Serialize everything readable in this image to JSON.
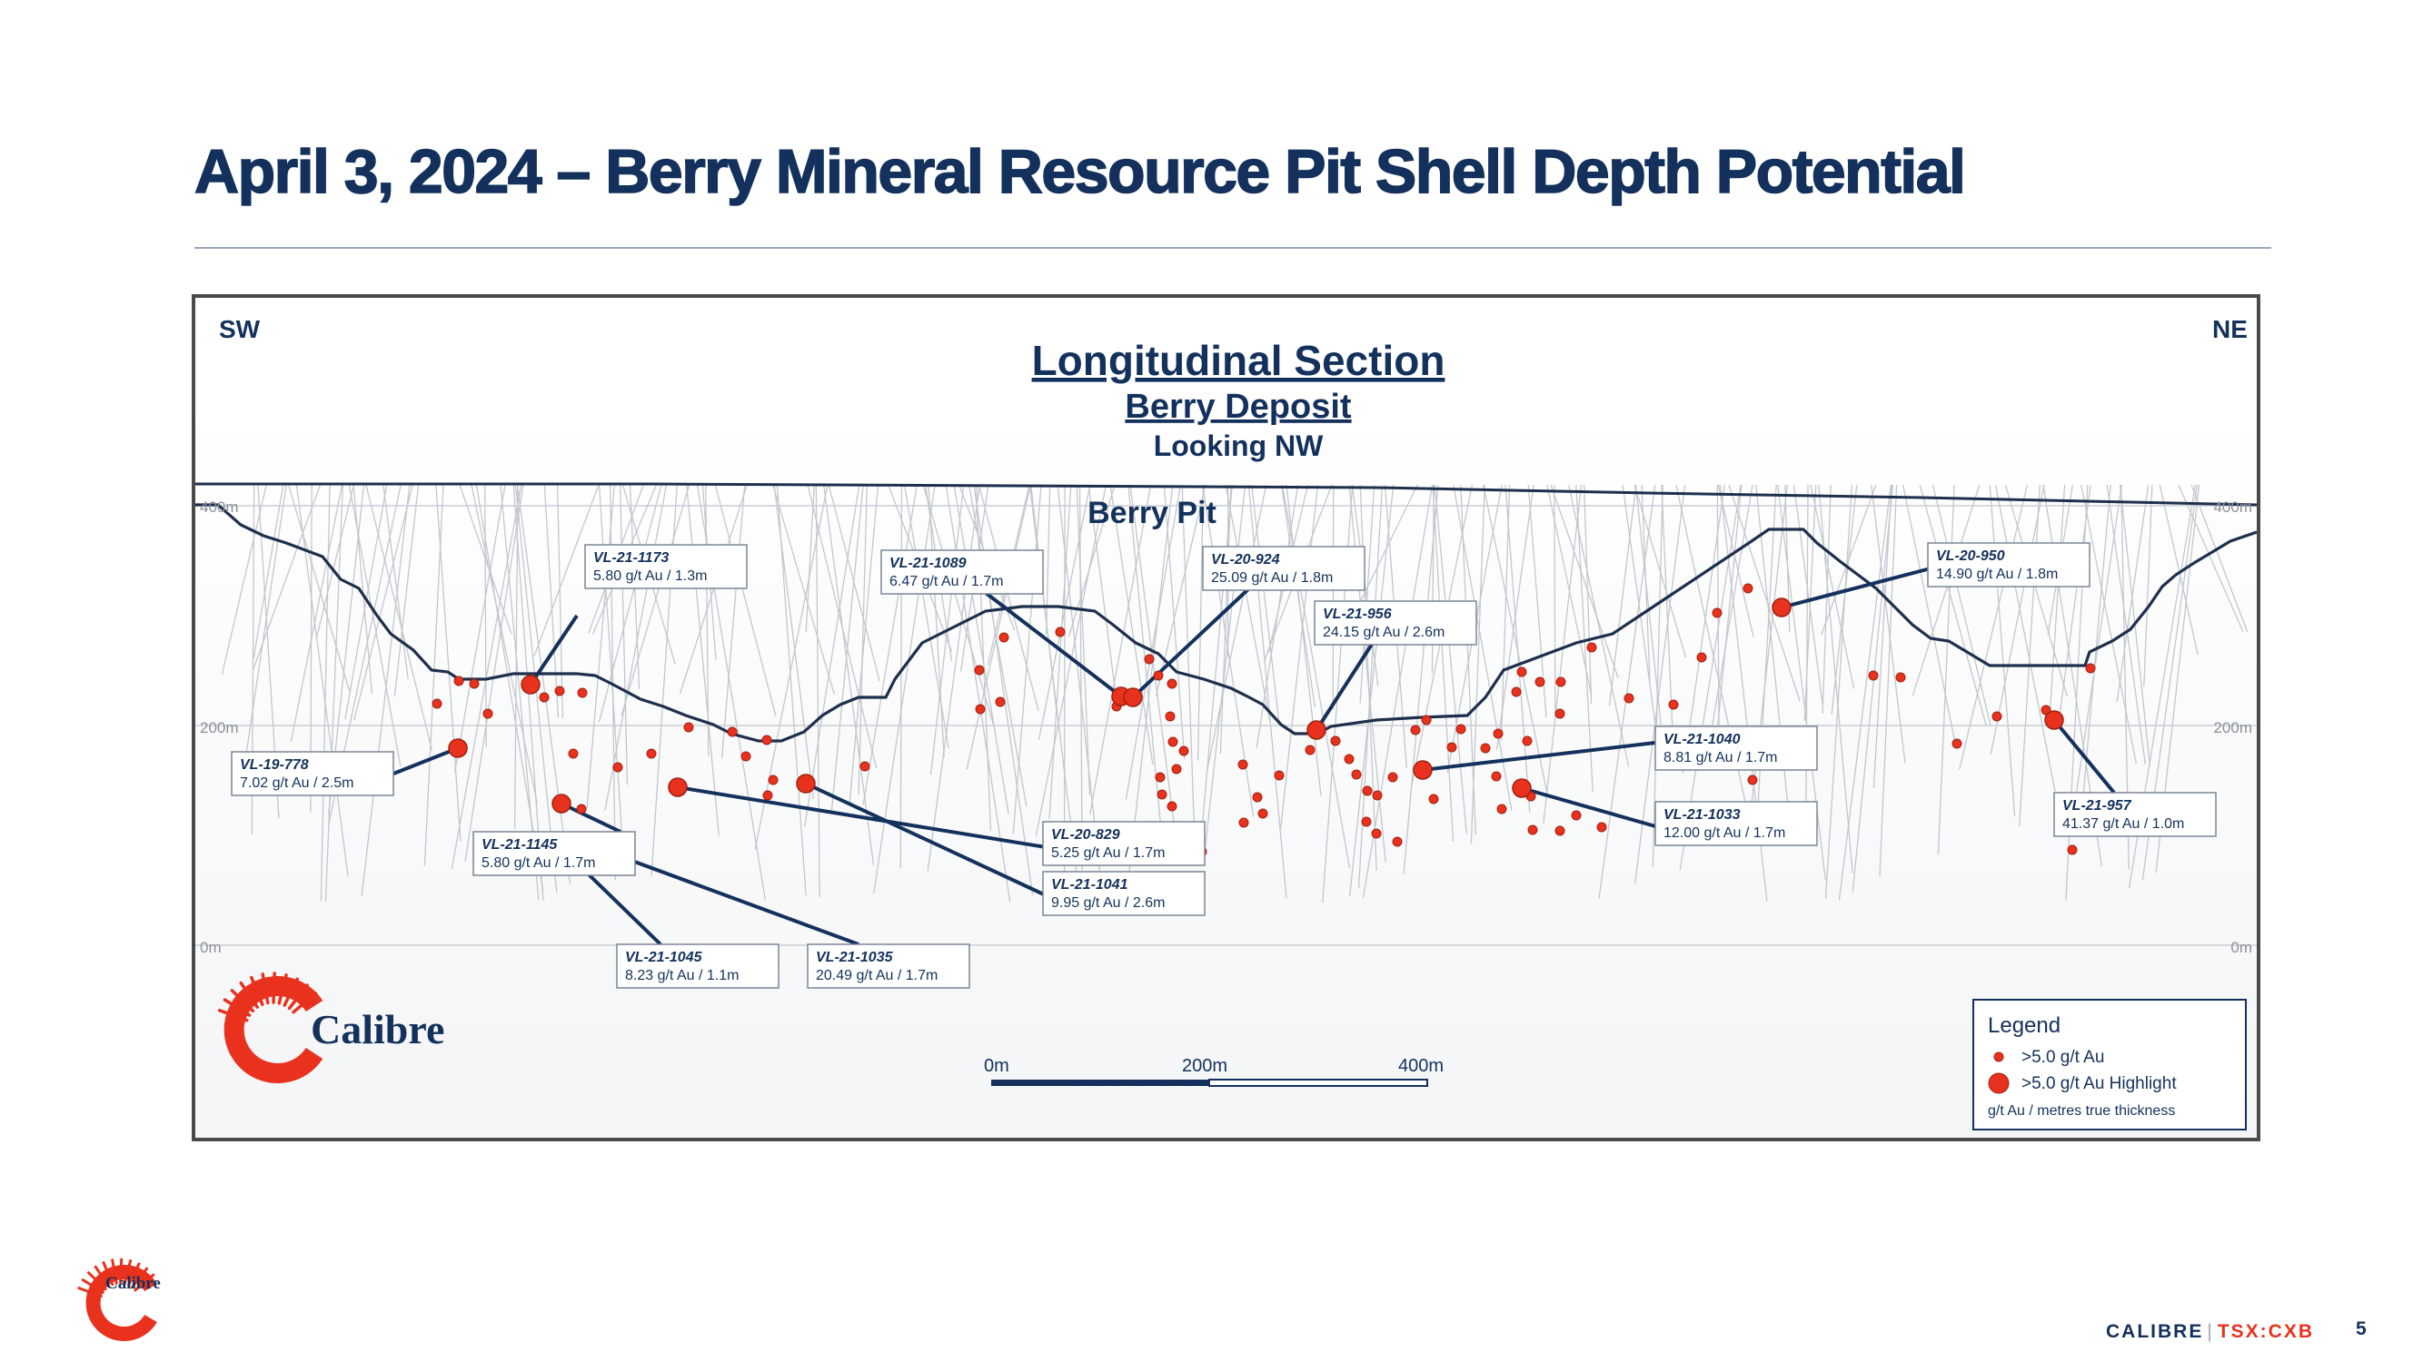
{
  "slide": {
    "title": "April 3, 2024 – Berry Mineral Resource Pit Shell Depth Potential",
    "footer_brand": "CALIBRE",
    "footer_separator": "|",
    "footer_ticker": "TSX:CXB",
    "page_number": "5"
  },
  "section": {
    "title": "Longitudinal Section",
    "subtitle": "Berry Deposit",
    "view": "Looking NW",
    "sw_label": "SW",
    "ne_label": "NE",
    "pit_label": "Berry Pit",
    "elevations": [
      "400m",
      "200m",
      "0m"
    ],
    "logo_text": "Calibre"
  },
  "scale_bar": {
    "labels": [
      "0m",
      "200m",
      "400m"
    ]
  },
  "legend": {
    "title": "Legend",
    "item_small": ">5.0 g/t Au",
    "item_large": ">5.0 g/t Au Highlight",
    "note": "g/t Au / metres true thickness"
  },
  "colors": {
    "navy": "#13315c",
    "intercept_red": "#e8321e",
    "drillhole_grey": "#b9bec6",
    "pit_outline": "#1e2f4d"
  },
  "callouts": [
    {
      "id": "VL-21-1173",
      "value": "5.80 g/t Au / 1.3m"
    },
    {
      "id": "VL-21-1089",
      "value": "6.47 g/t Au / 1.7m"
    },
    {
      "id": "VL-20-924",
      "value": "25.09 g/t Au / 1.8m"
    },
    {
      "id": "VL-21-956",
      "value": "24.15 g/t Au / 2.6m"
    },
    {
      "id": "VL-20-950",
      "value": "14.90 g/t Au / 1.8m"
    },
    {
      "id": "VL-19-778",
      "value": "7.02 g/t Au / 2.5m"
    },
    {
      "id": "VL-21-1145",
      "value": "5.80 g/t Au / 1.7m"
    },
    {
      "id": "VL-20-829",
      "value": "5.25 g/t Au / 1.7m"
    },
    {
      "id": "VL-21-1041",
      "value": "9.95 g/t Au / 2.6m"
    },
    {
      "id": "VL-21-1040",
      "value": "8.81 g/t Au / 1.7m"
    },
    {
      "id": "VL-21-1033",
      "value": "12.00 g/t Au / 1.7m"
    },
    {
      "id": "VL-21-957",
      "value": "41.37 g/t Au / 1.0m"
    },
    {
      "id": "VL-21-1045",
      "value": "8.23 g/t Au / 1.1m"
    },
    {
      "id": "VL-21-1035",
      "value": "20.49 g/t Au / 1.7m"
    }
  ]
}
